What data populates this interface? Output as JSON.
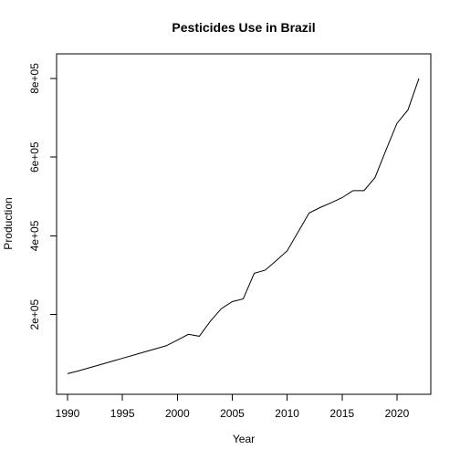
{
  "chart_data": {
    "type": "line",
    "title": "Pesticides Use in Brazil",
    "xlabel": "Year",
    "ylabel": "Production",
    "xlim": [
      1990,
      2022
    ],
    "ylim": [
      30000,
      830000
    ],
    "xticks": [
      1990,
      1995,
      2000,
      2005,
      2010,
      2015,
      2020
    ],
    "yticks": [
      200000,
      400000,
      600000,
      800000
    ],
    "ytick_labels": [
      "2e+05",
      "4e+05",
      "6e+05",
      "8e+05"
    ],
    "grid": false,
    "series": [
      {
        "x": [
          1990,
          1991,
          1992,
          1993,
          1994,
          1995,
          1996,
          1997,
          1998,
          1999,
          2000,
          2001,
          2002,
          2003,
          2004,
          2005,
          2006,
          2007,
          2008,
          2009,
          2010,
          2011,
          2012,
          2013,
          2014,
          2015,
          2016,
          2017,
          2018,
          2019,
          2020,
          2021,
          2022
        ],
        "y": [
          50000,
          57000,
          65000,
          73000,
          81000,
          89000,
          97000,
          105000,
          113000,
          121000,
          135000,
          150000,
          145000,
          183000,
          215000,
          233000,
          240000,
          305000,
          313000,
          337000,
          362000,
          410000,
          458000,
          472000,
          484000,
          497000,
          515000,
          515000,
          548000,
          618000,
          686000,
          720000,
          800000
        ]
      }
    ]
  }
}
